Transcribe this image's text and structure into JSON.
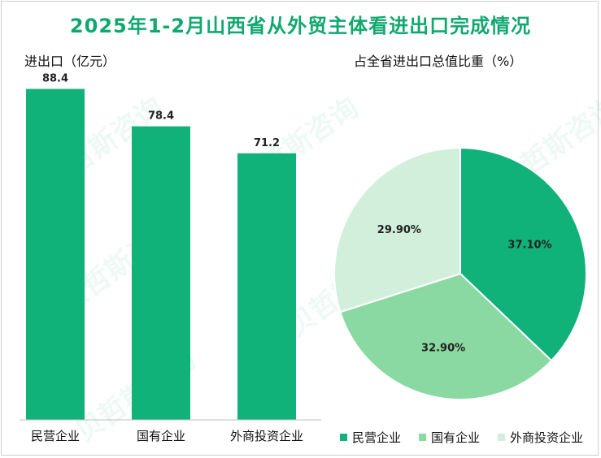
{
  "title": "2025年1-2月山西省从外贸主体看进出口完成情况",
  "watermark": "贝哲斯咨询",
  "colors": {
    "primary": "#10b27a",
    "secondary": "#8ad9a2",
    "tertiary": "#d2efdc",
    "title": "#10a870"
  },
  "chart_data": [
    {
      "type": "bar",
      "title": "进出口（亿元）",
      "categories": [
        "民营企业",
        "国有企业",
        "外商投资企业"
      ],
      "values": [
        88.4,
        78.4,
        71.2
      ],
      "value_labels": [
        "88.4",
        "78.4",
        "71.2"
      ],
      "ylim": [
        0,
        100
      ],
      "grid": false
    },
    {
      "type": "pie",
      "title": "占全省进出口总值比重（%）",
      "labels": [
        "民营企业",
        "国有企业",
        "外商投资企业"
      ],
      "values": [
        37.1,
        32.9,
        29.9
      ],
      "value_labels": [
        "37.10%",
        "32.90%",
        "29.90%"
      ],
      "legend": "bottom"
    }
  ]
}
